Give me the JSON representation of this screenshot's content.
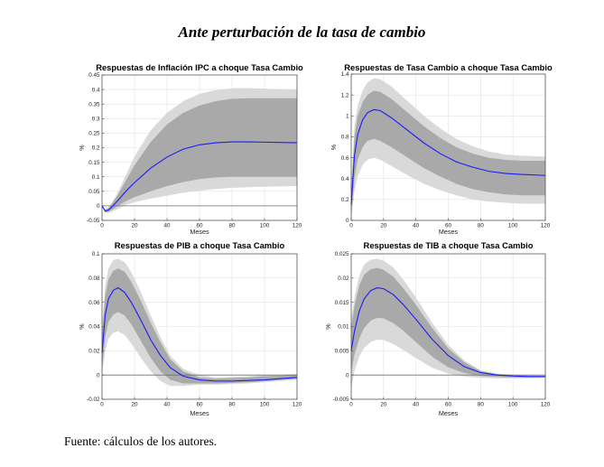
{
  "figure_title": "Ante perturbación de la tasa de cambio",
  "source_note": "Fuente: cálculos de los autores.",
  "colors": {
    "outer_band": "#d9d9d9",
    "inner_band": "#a9a9a9",
    "median_line": "#1a1aff",
    "zero_line": "#707070",
    "grid": "#e2e2e2"
  },
  "chart_data": [
    {
      "type": "area",
      "title": "Respuestas de Inflación IPC a choque Tasa Cambio",
      "xlabel": "Meses",
      "ylabel": "%",
      "xlim": [
        0,
        120
      ],
      "ylim": [
        -0.05,
        0.45
      ],
      "xticks": [
        0,
        20,
        40,
        60,
        80,
        100,
        120
      ],
      "yticks": [
        -0.05,
        0,
        0.05,
        0.1,
        0.15,
        0.2,
        0.25,
        0.3,
        0.35,
        0.4,
        0.45
      ],
      "ytick_labels": [
        "-0.05",
        "0",
        "0.05",
        "0.1",
        "0.15",
        "0.2",
        "0.25",
        "0.3",
        "0.35",
        "0.4",
        "0.45"
      ],
      "x": [
        0,
        2,
        4,
        6,
        10,
        15,
        20,
        30,
        40,
        50,
        60,
        70,
        80,
        90,
        100,
        110,
        120
      ],
      "series": [
        {
          "name": "outer_upper",
          "values": [
            0,
            -0.012,
            -0.005,
            0.01,
            0.05,
            0.11,
            0.17,
            0.26,
            0.32,
            0.36,
            0.385,
            0.398,
            0.404,
            0.405,
            0.403,
            0.401,
            0.4
          ]
        },
        {
          "name": "inner_upper",
          "values": [
            0,
            -0.014,
            -0.008,
            0.006,
            0.04,
            0.09,
            0.14,
            0.22,
            0.28,
            0.32,
            0.345,
            0.36,
            0.368,
            0.37,
            0.37,
            0.37,
            0.37
          ]
        },
        {
          "name": "median",
          "values": [
            0,
            -0.018,
            -0.014,
            -0.004,
            0.02,
            0.052,
            0.08,
            0.13,
            0.168,
            0.195,
            0.21,
            0.217,
            0.22,
            0.22,
            0.219,
            0.218,
            0.217
          ]
        },
        {
          "name": "inner_lower",
          "values": [
            0,
            -0.022,
            -0.02,
            -0.014,
            0.0,
            0.017,
            0.03,
            0.05,
            0.068,
            0.082,
            0.092,
            0.098,
            0.1,
            0.1,
            0.1,
            0.1,
            0.1
          ]
        },
        {
          "name": "outer_lower",
          "values": [
            0,
            -0.024,
            -0.024,
            -0.02,
            -0.01,
            0.004,
            0.013,
            0.025,
            0.035,
            0.045,
            0.052,
            0.058,
            0.062,
            0.064,
            0.066,
            0.067,
            0.068
          ]
        }
      ]
    },
    {
      "type": "area",
      "title": "Respuestas de Tasa Cambio a choque Tasa Cambio",
      "xlabel": "Meses",
      "ylabel": "%",
      "xlim": [
        0,
        120
      ],
      "ylim": [
        0,
        1.4
      ],
      "xticks": [
        0,
        20,
        40,
        60,
        80,
        100,
        120
      ],
      "yticks": [
        0,
        0.2,
        0.4,
        0.6,
        0.8,
        1,
        1.2,
        1.4
      ],
      "ytick_labels": [
        "0",
        "0.2",
        "0.4",
        "0.6",
        "0.8",
        "1",
        "1.2",
        "1.4"
      ],
      "x": [
        0,
        2,
        4,
        7,
        10,
        14,
        18,
        25,
        35,
        45,
        55,
        65,
        75,
        85,
        95,
        105,
        120
      ],
      "series": [
        {
          "name": "outer_upper",
          "values": [
            0.32,
            0.9,
            1.1,
            1.24,
            1.32,
            1.36,
            1.35,
            1.28,
            1.14,
            1.0,
            0.88,
            0.78,
            0.71,
            0.66,
            0.63,
            0.62,
            0.61
          ]
        },
        {
          "name": "inner_upper",
          "values": [
            0.28,
            0.8,
            1.0,
            1.13,
            1.2,
            1.24,
            1.23,
            1.16,
            1.03,
            0.9,
            0.79,
            0.7,
            0.64,
            0.6,
            0.58,
            0.57,
            0.57
          ]
        },
        {
          "name": "median",
          "values": [
            0.15,
            0.62,
            0.82,
            0.96,
            1.03,
            1.06,
            1.05,
            0.98,
            0.86,
            0.74,
            0.64,
            0.56,
            0.51,
            0.47,
            0.45,
            0.44,
            0.43
          ]
        },
        {
          "name": "inner_lower",
          "values": [
            0.05,
            0.4,
            0.58,
            0.7,
            0.76,
            0.78,
            0.76,
            0.7,
            0.6,
            0.5,
            0.42,
            0.35,
            0.3,
            0.27,
            0.25,
            0.24,
            0.24
          ]
        },
        {
          "name": "outer_lower",
          "values": [
            0.02,
            0.28,
            0.42,
            0.53,
            0.58,
            0.6,
            0.58,
            0.52,
            0.43,
            0.35,
            0.29,
            0.24,
            0.2,
            0.18,
            0.17,
            0.16,
            0.16
          ]
        }
      ]
    },
    {
      "type": "area",
      "title": "Respuestas de PIB a choque Tasa Cambio",
      "xlabel": "Meses",
      "ylabel": "%",
      "xlim": [
        0,
        120
      ],
      "ylim": [
        -0.02,
        0.1
      ],
      "xticks": [
        0,
        20,
        40,
        60,
        80,
        100,
        120
      ],
      "yticks": [
        -0.02,
        0,
        0.02,
        0.04,
        0.06,
        0.08,
        0.1
      ],
      "ytick_labels": [
        "-0.02",
        "0",
        "0.02",
        "0.04",
        "0.06",
        "0.08",
        "0.1"
      ],
      "x": [
        0,
        2,
        4,
        7,
        10,
        14,
        18,
        24,
        30,
        36,
        42,
        50,
        60,
        70,
        80,
        90,
        100,
        110,
        120
      ],
      "series": [
        {
          "name": "outer_upper",
          "values": [
            0.04,
            0.074,
            0.088,
            0.095,
            0.096,
            0.093,
            0.085,
            0.068,
            0.049,
            0.031,
            0.016,
            0.005,
            0.0,
            -0.002,
            -0.0015,
            -0.001,
            0.0,
            0.0,
            0.001
          ]
        },
        {
          "name": "inner_upper",
          "values": [
            0.033,
            0.066,
            0.079,
            0.086,
            0.088,
            0.085,
            0.077,
            0.061,
            0.043,
            0.027,
            0.013,
            0.003,
            -0.002,
            -0.003,
            -0.0025,
            -0.002,
            -0.001,
            -0.0005,
            0.0
          ]
        },
        {
          "name": "median",
          "values": [
            0.018,
            0.05,
            0.063,
            0.07,
            0.072,
            0.068,
            0.06,
            0.045,
            0.029,
            0.016,
            0.006,
            -0.001,
            -0.004,
            -0.005,
            -0.005,
            -0.0045,
            -0.004,
            -0.003,
            -0.002
          ]
        },
        {
          "name": "inner_lower",
          "values": [
            0.005,
            0.032,
            0.044,
            0.05,
            0.052,
            0.049,
            0.042,
            0.028,
            0.014,
            0.003,
            -0.004,
            -0.007,
            -0.007,
            -0.007,
            -0.0065,
            -0.006,
            -0.005,
            -0.004,
            -0.003
          ]
        },
        {
          "name": "outer_lower",
          "values": [
            0.0,
            0.02,
            0.03,
            0.035,
            0.036,
            0.033,
            0.026,
            0.014,
            0.003,
            -0.005,
            -0.009,
            -0.009,
            -0.008,
            -0.008,
            -0.0075,
            -0.007,
            -0.006,
            -0.005,
            -0.004
          ]
        }
      ]
    },
    {
      "type": "area",
      "title": "Respuestas de TIB a choque Tasa Cambio",
      "xlabel": "Meses",
      "ylabel": "%",
      "xlim": [
        0,
        120
      ],
      "ylim": [
        -0.005,
        0.025
      ],
      "xticks": [
        0,
        20,
        40,
        60,
        80,
        100,
        120
      ],
      "yticks": [
        -0.005,
        0,
        0.005,
        0.01,
        0.015,
        0.02,
        0.025
      ],
      "ytick_labels": [
        "-0.005",
        "0",
        "0.005",
        "0.01",
        "0.015",
        "0.02",
        "0.025"
      ],
      "x": [
        0,
        2,
        5,
        8,
        12,
        16,
        20,
        26,
        32,
        40,
        50,
        60,
        70,
        80,
        90,
        100,
        110,
        120
      ],
      "series": [
        {
          "name": "outer_upper",
          "values": [
            0.0115,
            0.016,
            0.0205,
            0.0228,
            0.0238,
            0.024,
            0.0236,
            0.0222,
            0.0198,
            0.016,
            0.0108,
            0.0062,
            0.003,
            0.001,
            0.0003,
            0.0,
            -0.0001,
            -0.0002
          ]
        },
        {
          "name": "inner_upper",
          "values": [
            0.0098,
            0.0142,
            0.0185,
            0.0207,
            0.0218,
            0.0221,
            0.0217,
            0.0203,
            0.018,
            0.0145,
            0.0097,
            0.0055,
            0.0026,
            0.0008,
            0.0002,
            -0.0001,
            -0.0002,
            -0.0002
          ]
        },
        {
          "name": "median",
          "values": [
            0.005,
            0.009,
            0.0132,
            0.0157,
            0.0174,
            0.018,
            0.0178,
            0.0166,
            0.0146,
            0.0115,
            0.0074,
            0.004,
            0.0017,
            0.0005,
            0.0,
            -0.0002,
            -0.0003,
            -0.0003
          ]
        },
        {
          "name": "inner_lower",
          "values": [
            0.0005,
            0.0042,
            0.0075,
            0.0097,
            0.0112,
            0.0118,
            0.0117,
            0.0107,
            0.0092,
            0.0068,
            0.0038,
            0.0016,
            0.0004,
            -0.0002,
            -0.0004,
            -0.0005,
            -0.0005,
            -0.0005
          ]
        },
        {
          "name": "outer_lower",
          "values": [
            -0.003,
            0.0008,
            0.0038,
            0.0056,
            0.0068,
            0.0073,
            0.0072,
            0.0064,
            0.0052,
            0.0035,
            0.0015,
            0.0003,
            -0.0003,
            -0.0006,
            -0.0007,
            -0.0007,
            -0.0007,
            -0.0006
          ]
        }
      ]
    }
  ]
}
